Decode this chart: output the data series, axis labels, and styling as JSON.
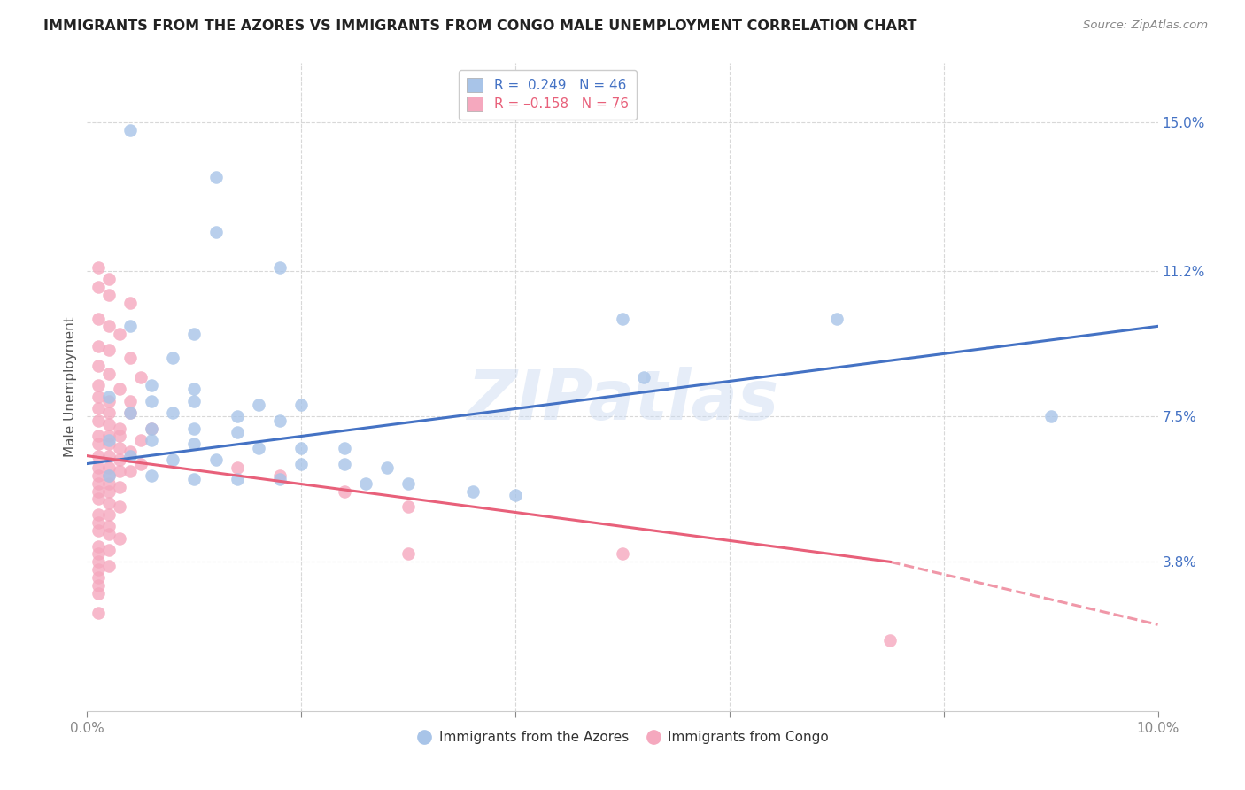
{
  "title": "IMMIGRANTS FROM THE AZORES VS IMMIGRANTS FROM CONGO MALE UNEMPLOYMENT CORRELATION CHART",
  "source": "Source: ZipAtlas.com",
  "ylabel": "Male Unemployment",
  "xlim": [
    0.0,
    0.1
  ],
  "ylim": [
    0.0,
    0.165
  ],
  "ytick_positions": [
    0.038,
    0.075,
    0.112,
    0.15
  ],
  "ytick_labels": [
    "3.8%",
    "7.5%",
    "11.2%",
    "15.0%"
  ],
  "legend_R_azores": "R =  0.249",
  "legend_N_azores": "N = 46",
  "legend_R_congo": "R = -0.158",
  "legend_N_congo": "N = 76",
  "azores_color": "#a8c4e8",
  "congo_color": "#f5a8be",
  "azores_line_color": "#4472c4",
  "congo_line_color": "#e8607a",
  "watermark": "ZIPatlas",
  "background_color": "#ffffff",
  "grid_color": "#d8d8d8",
  "azores_line": [
    0.0,
    0.063,
    0.1,
    0.098
  ],
  "congo_line_solid": [
    0.0,
    0.065,
    0.075,
    0.038
  ],
  "congo_line_dash": [
    0.075,
    0.038,
    0.1,
    0.022
  ],
  "azores_points": [
    [
      0.004,
      0.148
    ],
    [
      0.012,
      0.136
    ],
    [
      0.012,
      0.122
    ],
    [
      0.018,
      0.113
    ],
    [
      0.004,
      0.098
    ],
    [
      0.01,
      0.096
    ],
    [
      0.008,
      0.09
    ],
    [
      0.006,
      0.083
    ],
    [
      0.01,
      0.082
    ],
    [
      0.002,
      0.08
    ],
    [
      0.006,
      0.079
    ],
    [
      0.01,
      0.079
    ],
    [
      0.016,
      0.078
    ],
    [
      0.02,
      0.078
    ],
    [
      0.004,
      0.076
    ],
    [
      0.008,
      0.076
    ],
    [
      0.014,
      0.075
    ],
    [
      0.018,
      0.074
    ],
    [
      0.006,
      0.072
    ],
    [
      0.01,
      0.072
    ],
    [
      0.014,
      0.071
    ],
    [
      0.002,
      0.069
    ],
    [
      0.006,
      0.069
    ],
    [
      0.01,
      0.068
    ],
    [
      0.016,
      0.067
    ],
    [
      0.02,
      0.067
    ],
    [
      0.024,
      0.067
    ],
    [
      0.004,
      0.065
    ],
    [
      0.008,
      0.064
    ],
    [
      0.012,
      0.064
    ],
    [
      0.02,
      0.063
    ],
    [
      0.024,
      0.063
    ],
    [
      0.028,
      0.062
    ],
    [
      0.002,
      0.06
    ],
    [
      0.006,
      0.06
    ],
    [
      0.01,
      0.059
    ],
    [
      0.014,
      0.059
    ],
    [
      0.018,
      0.059
    ],
    [
      0.026,
      0.058
    ],
    [
      0.03,
      0.058
    ],
    [
      0.036,
      0.056
    ],
    [
      0.04,
      0.055
    ],
    [
      0.05,
      0.1
    ],
    [
      0.07,
      0.1
    ],
    [
      0.052,
      0.085
    ],
    [
      0.09,
      0.075
    ]
  ],
  "congo_points": [
    [
      0.001,
      0.113
    ],
    [
      0.002,
      0.11
    ],
    [
      0.001,
      0.108
    ],
    [
      0.002,
      0.106
    ],
    [
      0.004,
      0.104
    ],
    [
      0.001,
      0.1
    ],
    [
      0.002,
      0.098
    ],
    [
      0.003,
      0.096
    ],
    [
      0.001,
      0.093
    ],
    [
      0.002,
      0.092
    ],
    [
      0.004,
      0.09
    ],
    [
      0.001,
      0.088
    ],
    [
      0.002,
      0.086
    ],
    [
      0.005,
      0.085
    ],
    [
      0.001,
      0.083
    ],
    [
      0.003,
      0.082
    ],
    [
      0.001,
      0.08
    ],
    [
      0.002,
      0.079
    ],
    [
      0.004,
      0.079
    ],
    [
      0.001,
      0.077
    ],
    [
      0.002,
      0.076
    ],
    [
      0.004,
      0.076
    ],
    [
      0.001,
      0.074
    ],
    [
      0.002,
      0.073
    ],
    [
      0.003,
      0.072
    ],
    [
      0.006,
      0.072
    ],
    [
      0.001,
      0.07
    ],
    [
      0.002,
      0.07
    ],
    [
      0.003,
      0.07
    ],
    [
      0.005,
      0.069
    ],
    [
      0.001,
      0.068
    ],
    [
      0.002,
      0.068
    ],
    [
      0.003,
      0.067
    ],
    [
      0.004,
      0.066
    ],
    [
      0.001,
      0.065
    ],
    [
      0.002,
      0.065
    ],
    [
      0.003,
      0.064
    ],
    [
      0.005,
      0.063
    ],
    [
      0.001,
      0.062
    ],
    [
      0.002,
      0.062
    ],
    [
      0.003,
      0.061
    ],
    [
      0.004,
      0.061
    ],
    [
      0.001,
      0.06
    ],
    [
      0.002,
      0.06
    ],
    [
      0.001,
      0.058
    ],
    [
      0.002,
      0.058
    ],
    [
      0.003,
      0.057
    ],
    [
      0.001,
      0.056
    ],
    [
      0.002,
      0.056
    ],
    [
      0.001,
      0.054
    ],
    [
      0.002,
      0.053
    ],
    [
      0.003,
      0.052
    ],
    [
      0.001,
      0.05
    ],
    [
      0.002,
      0.05
    ],
    [
      0.001,
      0.048
    ],
    [
      0.002,
      0.047
    ],
    [
      0.001,
      0.046
    ],
    [
      0.002,
      0.045
    ],
    [
      0.003,
      0.044
    ],
    [
      0.001,
      0.042
    ],
    [
      0.002,
      0.041
    ],
    [
      0.001,
      0.04
    ],
    [
      0.001,
      0.038
    ],
    [
      0.002,
      0.037
    ],
    [
      0.001,
      0.036
    ],
    [
      0.001,
      0.034
    ],
    [
      0.001,
      0.032
    ],
    [
      0.001,
      0.03
    ],
    [
      0.001,
      0.025
    ],
    [
      0.014,
      0.062
    ],
    [
      0.018,
      0.06
    ],
    [
      0.024,
      0.056
    ],
    [
      0.03,
      0.052
    ],
    [
      0.05,
      0.04
    ],
    [
      0.075,
      0.018
    ],
    [
      0.03,
      0.04
    ]
  ]
}
